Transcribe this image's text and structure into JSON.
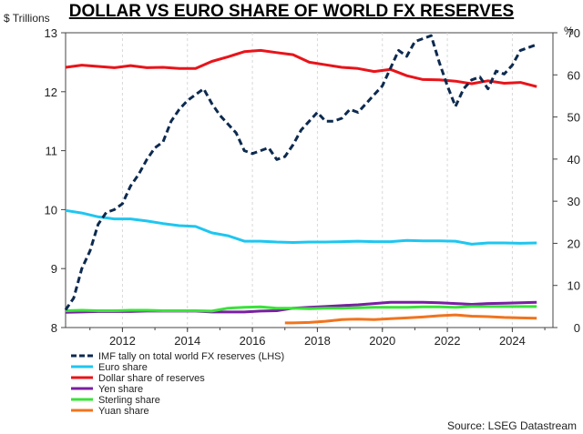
{
  "chart_data": {
    "type": "line",
    "title": "DOLLAR VS EURO SHARE OF WORLD FX RESERVES",
    "ylabel_left": "$ Trillions",
    "ylabel_right": "%",
    "source": "Source: LSEG Datastream",
    "x_ticks": [
      2012,
      2014,
      2016,
      2018,
      2020,
      2022,
      2024
    ],
    "xlim": [
      2010.25,
      2025.25
    ],
    "ylim_left": [
      8,
      13
    ],
    "y_ticks_left": [
      8,
      9,
      10,
      11,
      12,
      13
    ],
    "ylim_right": [
      0,
      70
    ],
    "y_ticks_right": [
      0,
      10,
      20,
      30,
      40,
      50,
      60,
      70
    ],
    "grid": "vertical",
    "legend_position": "bottom-left",
    "series": [
      {
        "name": "IMF tally on total world FX reserves (LHS)",
        "axis": "left",
        "color": "#0d2a4f",
        "style": "dashed",
        "x": [
          2010.25,
          2010.5,
          2010.75,
          2011.0,
          2011.25,
          2011.5,
          2011.75,
          2012.0,
          2012.25,
          2012.5,
          2012.75,
          2013.0,
          2013.25,
          2013.5,
          2013.75,
          2014.0,
          2014.25,
          2014.5,
          2014.75,
          2015.0,
          2015.25,
          2015.5,
          2015.75,
          2016.0,
          2016.25,
          2016.5,
          2016.75,
          2017.0,
          2017.25,
          2017.5,
          2017.75,
          2018.0,
          2018.25,
          2018.5,
          2018.75,
          2019.0,
          2019.25,
          2019.5,
          2019.75,
          2020.0,
          2020.25,
          2020.5,
          2020.75,
          2021.0,
          2021.25,
          2021.5,
          2021.75,
          2022.0,
          2022.25,
          2022.5,
          2022.75,
          2023.0,
          2023.25,
          2023.5,
          2023.75,
          2024.0,
          2024.25,
          2024.5,
          2024.75
        ],
        "values": [
          8.3,
          8.5,
          9.0,
          9.3,
          9.75,
          9.95,
          10.0,
          10.1,
          10.4,
          10.6,
          10.85,
          11.05,
          11.15,
          11.5,
          11.7,
          11.85,
          11.95,
          12.05,
          11.8,
          11.6,
          11.45,
          11.3,
          11.0,
          10.95,
          11.0,
          11.05,
          10.85,
          10.9,
          11.1,
          11.35,
          11.5,
          11.65,
          11.5,
          11.5,
          11.55,
          11.7,
          11.65,
          11.8,
          11.95,
          12.1,
          12.4,
          12.7,
          12.6,
          12.85,
          12.9,
          12.95,
          12.5,
          12.1,
          11.75,
          12.05,
          12.2,
          12.25,
          12.05,
          12.35,
          12.3,
          12.45,
          12.7,
          12.75,
          12.8
        ],
        "values_start_note": ""
      },
      {
        "name": "Euro share",
        "axis": "right",
        "color": "#1ec6f0",
        "style": "solid",
        "x": [
          2010.25,
          2010.75,
          2011.25,
          2011.75,
          2012.25,
          2012.75,
          2013.25,
          2013.75,
          2014.25,
          2014.75,
          2015.25,
          2015.75,
          2016.25,
          2016.75,
          2017.25,
          2017.75,
          2018.25,
          2018.75,
          2019.25,
          2019.75,
          2020.25,
          2020.75,
          2021.25,
          2021.75,
          2022.25,
          2022.75,
          2023.25,
          2023.75,
          2024.25,
          2024.75
        ],
        "values": [
          27.8,
          27.2,
          26.3,
          25.8,
          25.8,
          25.3,
          24.7,
          24.2,
          24.0,
          22.5,
          21.8,
          20.5,
          20.5,
          20.3,
          20.2,
          20.3,
          20.3,
          20.4,
          20.5,
          20.4,
          20.4,
          20.7,
          20.6,
          20.6,
          20.5,
          19.8,
          20.1,
          20.1,
          20.0,
          20.1
        ]
      },
      {
        "name": "Dollar share of reserves",
        "axis": "right",
        "color": "#e8141a",
        "style": "solid",
        "x": [
          2010.25,
          2010.75,
          2011.25,
          2011.75,
          2012.25,
          2012.75,
          2013.25,
          2013.75,
          2014.25,
          2014.75,
          2015.25,
          2015.75,
          2016.25,
          2016.75,
          2017.25,
          2017.75,
          2018.25,
          2018.75,
          2019.25,
          2019.75,
          2020.25,
          2020.75,
          2021.25,
          2021.75,
          2022.25,
          2022.75,
          2023.25,
          2023.75,
          2024.25,
          2024.75
        ],
        "values": [
          61.8,
          62.3,
          62.0,
          61.7,
          62.2,
          61.7,
          61.8,
          61.5,
          61.5,
          63.2,
          64.3,
          65.5,
          65.8,
          65.3,
          64.8,
          63.0,
          62.4,
          61.8,
          61.5,
          60.8,
          61.3,
          59.8,
          58.9,
          58.8,
          58.5,
          57.9,
          58.6,
          58.0,
          58.2,
          57.2
        ]
      },
      {
        "name": "Yen share",
        "axis": "right",
        "color": "#7a1fa2",
        "style": "solid",
        "x": [
          2010.25,
          2010.75,
          2011.25,
          2011.75,
          2012.25,
          2012.75,
          2013.25,
          2013.75,
          2014.25,
          2014.75,
          2015.25,
          2015.75,
          2016.25,
          2016.75,
          2017.25,
          2017.75,
          2018.25,
          2018.75,
          2019.25,
          2019.75,
          2020.25,
          2020.75,
          2021.25,
          2021.75,
          2022.25,
          2022.75,
          2023.25,
          2023.75,
          2024.25,
          2024.75
        ],
        "values": [
          3.6,
          3.7,
          3.8,
          3.8,
          3.8,
          3.9,
          3.9,
          3.9,
          3.9,
          3.7,
          3.7,
          3.7,
          3.9,
          4.0,
          4.6,
          4.8,
          5.0,
          5.2,
          5.4,
          5.7,
          6.0,
          6.0,
          6.0,
          5.9,
          5.7,
          5.5,
          5.7,
          5.8,
          5.9,
          6.0
        ]
      },
      {
        "name": "Sterling share",
        "axis": "right",
        "color": "#3ae23a",
        "style": "solid",
        "x": [
          2010.25,
          2010.75,
          2011.25,
          2011.75,
          2012.25,
          2012.75,
          2013.25,
          2013.75,
          2014.25,
          2014.75,
          2015.25,
          2015.75,
          2016.25,
          2016.75,
          2017.25,
          2017.75,
          2018.25,
          2018.75,
          2019.25,
          2019.75,
          2020.25,
          2020.75,
          2021.25,
          2021.75,
          2022.25,
          2022.75,
          2023.25,
          2023.75,
          2024.25,
          2024.75
        ],
        "values": [
          4.0,
          4.1,
          4.0,
          4.0,
          4.1,
          4.1,
          4.0,
          4.0,
          4.0,
          3.9,
          4.6,
          4.8,
          4.9,
          4.6,
          4.6,
          4.5,
          4.6,
          4.6,
          4.7,
          4.8,
          4.8,
          4.8,
          4.9,
          4.9,
          4.8,
          5.0,
          5.0,
          5.0,
          5.0,
          5.0
        ]
      },
      {
        "name": "Yuan share",
        "axis": "right",
        "color": "#f0741e",
        "style": "solid",
        "x": [
          2017.0,
          2017.25,
          2017.75,
          2018.25,
          2018.75,
          2019.25,
          2019.75,
          2020.25,
          2020.75,
          2021.25,
          2021.75,
          2022.25,
          2022.75,
          2023.25,
          2023.75,
          2024.25,
          2024.75
        ],
        "values": [
          1.1,
          1.1,
          1.2,
          1.5,
          1.9,
          2.0,
          1.9,
          2.1,
          2.3,
          2.5,
          2.8,
          3.0,
          2.7,
          2.6,
          2.4,
          2.3,
          2.2
        ]
      }
    ]
  }
}
